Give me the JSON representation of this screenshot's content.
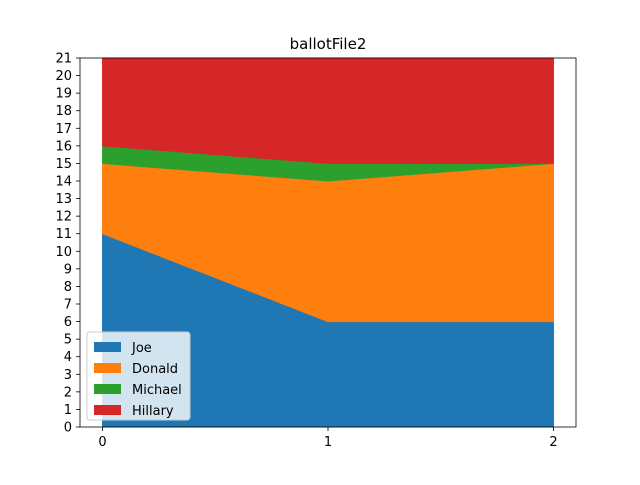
{
  "chart_data": {
    "type": "area",
    "stacked": true,
    "title": "ballotFile2",
    "xlabel": "",
    "ylabel": "",
    "x": [
      0,
      1,
      2
    ],
    "xlim": [
      -0.1,
      2.1
    ],
    "ylim": [
      0,
      21
    ],
    "xticks": [
      0,
      1,
      2
    ],
    "yticks": [
      0,
      1,
      2,
      3,
      4,
      5,
      6,
      7,
      8,
      9,
      10,
      11,
      12,
      13,
      14,
      15,
      16,
      17,
      18,
      19,
      20,
      21
    ],
    "grid": false,
    "legend_placement": "lower-left",
    "series": [
      {
        "name": "Joe",
        "values": [
          11,
          6,
          6
        ],
        "color": "#1f77b4"
      },
      {
        "name": "Donald",
        "values": [
          4,
          8,
          9
        ],
        "color": "#ff7f0e"
      },
      {
        "name": "Michael",
        "values": [
          1,
          1,
          0
        ],
        "color": "#2ca02c"
      },
      {
        "name": "Hillary",
        "values": [
          5,
          6,
          6
        ],
        "color": "#d62728"
      }
    ]
  }
}
